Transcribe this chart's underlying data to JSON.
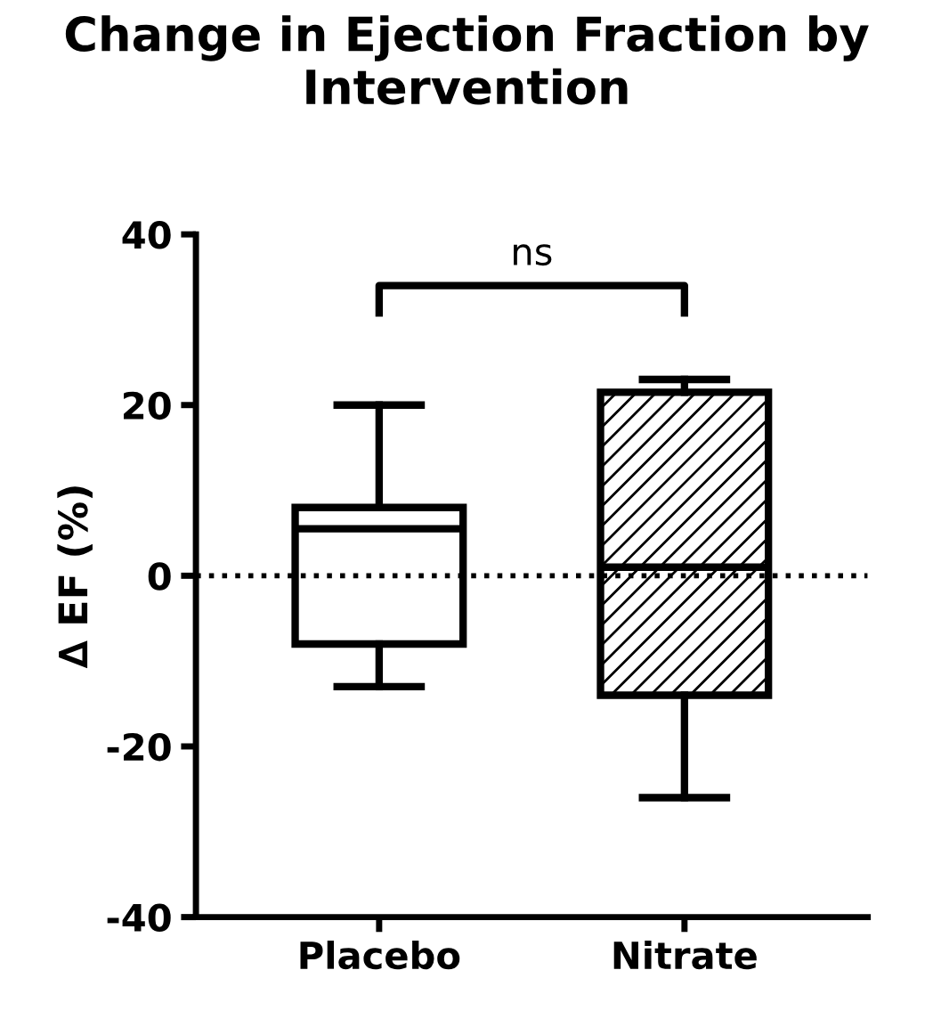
{
  "chart_data": {
    "type": "box",
    "title": "Change in Ejection Fraction by Intervention",
    "ylabel": "∆ EF (%)",
    "categories": [
      "Placebo",
      "Nitrate"
    ],
    "boxes": [
      {
        "low": -13,
        "q1": -8,
        "median": 5.5,
        "q3": 8,
        "high": 20
      },
      {
        "low": -26,
        "q1": -14,
        "median": 1,
        "q3": 21.5,
        "high": 23
      }
    ],
    "ylim": [
      -40,
      40
    ],
    "yticks": [
      -40,
      -20,
      0,
      20,
      40
    ],
    "grid": false,
    "ref_lines": [
      {
        "axis": "y",
        "value": 0,
        "line_style": "dotted",
        "color": "#000000"
      }
    ],
    "annotations": [
      "ns"
    ]
  }
}
